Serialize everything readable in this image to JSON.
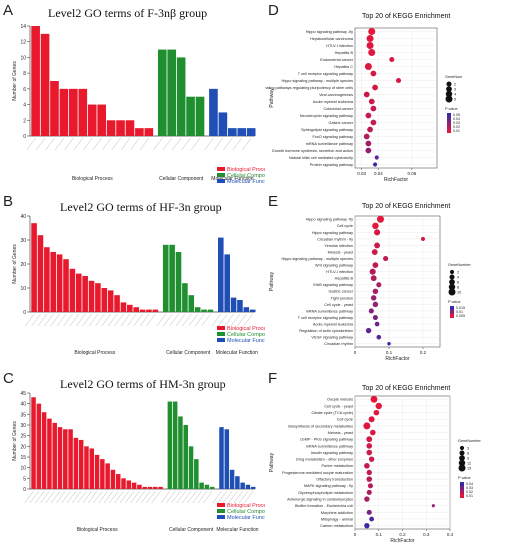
{
  "panels": {
    "A": "A",
    "B": "B",
    "C": "C",
    "D": "D",
    "E": "E",
    "F": "F"
  },
  "colors": {
    "bp": "#e8192c",
    "cc": "#1f8f2f",
    "mf": "#1f4fb4",
    "dot_high": "#e3163c",
    "dot_low": "#3a2aa8"
  },
  "chart_data": [
    {
      "id": "A",
      "type": "bar",
      "title": "Level2 GO terms of F-3nβ group",
      "ylabel": "Number of Genes",
      "ylim": [
        0,
        14
      ],
      "yticks": [
        0,
        2,
        4,
        6,
        8,
        10,
        12,
        14
      ],
      "groups": [
        "Biological Process",
        "Cellular Component",
        "Molecular Function"
      ],
      "legend": [
        "Biological Process",
        "Cellular Component",
        "Molecular Function"
      ],
      "series": [
        {
          "name": "Biological Process",
          "values": [
            14,
            13,
            7,
            6,
            6,
            6,
            4,
            4,
            2,
            2,
            2,
            1,
            1
          ]
        },
        {
          "name": "Cellular Component",
          "values": [
            11,
            11,
            10,
            5,
            5
          ]
        },
        {
          "name": "Molecular Function",
          "values": [
            6,
            3,
            1,
            1,
            1
          ]
        }
      ]
    },
    {
      "id": "B",
      "type": "bar",
      "title": "Level2 GO terms of HF-3n group",
      "ylabel": "Number of Genes",
      "ylim": [
        0,
        40
      ],
      "yticks": [
        0,
        10,
        20,
        30,
        40
      ],
      "groups": [
        "Biological Process",
        "Cellular Component",
        "Molecular Function"
      ],
      "legend": [
        "Biological Process",
        "Cellular Component",
        "Molecular Function"
      ],
      "series": [
        {
          "name": "Biological Process",
          "values": [
            37,
            32,
            27,
            25,
            24,
            22,
            18,
            16,
            15,
            13,
            12,
            10,
            9,
            7,
            4,
            3,
            2,
            1,
            1,
            1
          ]
        },
        {
          "name": "Cellular Component",
          "values": [
            28,
            28,
            25,
            12,
            7,
            2,
            1,
            1
          ]
        },
        {
          "name": "Molecular Function",
          "values": [
            31,
            24,
            6,
            5,
            2,
            1
          ]
        }
      ]
    },
    {
      "id": "C",
      "type": "bar",
      "title": "Level2 GO terms of HM-3n group",
      "ylabel": "Number of Genes",
      "ylim": [
        0,
        45
      ],
      "yticks": [
        0,
        5,
        10,
        15,
        20,
        25,
        30,
        35,
        40,
        45
      ],
      "groups": [
        "Biological Process",
        "Cellular Component",
        "Molecular Function"
      ],
      "legend": [
        "Biological Process",
        "Cellular Component",
        "Molecular Function"
      ],
      "series": [
        {
          "name": "Biological Process",
          "values": [
            43,
            40,
            36,
            33,
            31,
            29,
            28,
            28,
            24,
            23,
            20,
            19,
            16,
            14,
            12,
            9,
            7,
            5,
            4,
            3,
            2,
            1,
            1,
            1,
            1
          ]
        },
        {
          "name": "Cellular Component",
          "values": [
            41,
            41,
            34,
            30,
            20,
            14,
            3,
            2,
            1
          ]
        },
        {
          "name": "Molecular Function",
          "values": [
            29,
            28,
            9,
            6,
            3,
            2,
            1
          ]
        }
      ]
    },
    {
      "id": "D",
      "type": "scatter",
      "title": "Top 20 of KEGG Enrichment",
      "xlabel": "RichFactor",
      "ylabel": "Pathway",
      "xlim": [
        0.026,
        0.075
      ],
      "xticks": [
        0.03,
        0.04,
        0.06
      ],
      "size_legend_title": "GeneNum",
      "size_legend": [
        2,
        3,
        4,
        5
      ],
      "color_legend_title": "P value",
      "color_legend": [
        0.05,
        0.04,
        0.03,
        0.02,
        0.01
      ],
      "pathways": [
        "Hippo signaling pathway -fly",
        "Hepatocellular carcinoma",
        "HTLV-I infection",
        "Hepatitis B",
        "Endometrial cancer",
        "Hepatitis C",
        "T cell receptor signaling pathway",
        "Hippo signaling pathway - multiple species",
        "Signaling pathways regulating pluripotency of stem cells",
        "Viral carcinogenesis",
        "Acute myeloid leukemia",
        "Colorectal cancer",
        "Neurotrophin signaling pathway",
        "Gastric cancer",
        "Sphingolipid signaling pathway",
        "FoxO signaling pathway",
        "mRNA surveillance pathway",
        "Growth hormone synthesis, secretion and action",
        "Natural killer cell mediated cytotoxicity",
        "Protein signaling pathway"
      ],
      "x": [
        0.036,
        0.035,
        0.035,
        0.036,
        0.048,
        0.034,
        0.037,
        0.052,
        0.038,
        0.033,
        0.036,
        0.037,
        0.034,
        0.037,
        0.035,
        0.033,
        0.034,
        0.034,
        0.039,
        0.038
      ],
      "size": [
        5,
        5,
        5,
        5,
        2,
        5,
        3,
        2,
        3,
        3,
        3,
        3,
        3,
        3,
        3,
        3,
        3,
        3,
        1,
        1
      ],
      "pvalue": [
        0.001,
        0.001,
        0.002,
        0.002,
        0.004,
        0.003,
        0.005,
        0.005,
        0.006,
        0.007,
        0.008,
        0.009,
        0.009,
        0.01,
        0.012,
        0.015,
        0.02,
        0.025,
        0.04,
        0.05
      ]
    },
    {
      "id": "E",
      "type": "scatter",
      "title": "Top 20 of KEGG Enrichment",
      "xlabel": "RichFactor",
      "ylabel": "Pathway",
      "xlim": [
        0.0,
        0.25
      ],
      "xticks": [
        0.0,
        0.1,
        0.2
      ],
      "size_legend_title": "GeneNumber",
      "size_legend": [
        2,
        4,
        6,
        8,
        10
      ],
      "color_legend_title": "P value",
      "color_legend": [
        0.015,
        0.01,
        0.005
      ],
      "pathways": [
        "Hippo signaling pathway -fly",
        "Cell cycle",
        "Hippo signaling pathway",
        "Circadian rhythm - fly",
        "Yersinia infection",
        "Meiosis - yeast",
        "Hippo signaling pathway - multiple species",
        "Wnt signaling pathway",
        "HTLV-I infection",
        "Hepatitis B",
        "ErbB signaling pathway",
        "Gastric cancer",
        "Tight junction",
        "Cell cycle - yeast",
        "mRNA surveillance pathway",
        "T cell receptor signaling pathway",
        "Acute myeloid leukemia",
        "Regulation of actin cytoskeleton",
        "VEGF signaling pathway",
        "Circadian rhythm"
      ],
      "x": [
        0.075,
        0.06,
        0.065,
        0.2,
        0.065,
        0.058,
        0.09,
        0.06,
        0.052,
        0.055,
        0.07,
        0.06,
        0.055,
        0.06,
        0.048,
        0.06,
        0.065,
        0.04,
        0.07,
        0.1
      ],
      "size": [
        10,
        8,
        7,
        2,
        6,
        6,
        4,
        6,
        7,
        6,
        4,
        5,
        5,
        5,
        4,
        4,
        3,
        5,
        3,
        1
      ],
      "pvalue": [
        0.001,
        0.001,
        0.002,
        0.002,
        0.003,
        0.003,
        0.004,
        0.004,
        0.005,
        0.005,
        0.006,
        0.006,
        0.007,
        0.008,
        0.009,
        0.01,
        0.011,
        0.012,
        0.013,
        0.015
      ]
    },
    {
      "id": "F",
      "type": "scatter",
      "title": "Top 20 of KEGG Enrichment",
      "xlabel": "RichFactor",
      "ylabel": "Pathway",
      "xlim": [
        0.0,
        0.4
      ],
      "xticks": [
        0.0,
        0.1,
        0.2,
        0.3,
        0.4
      ],
      "size_legend_title": "GeneNumber",
      "size_legend": [
        3,
        6,
        9,
        12,
        15
      ],
      "color_legend_title": "P value",
      "color_legend": [
        0.04,
        0.03,
        0.02,
        0.01
      ],
      "pathways": [
        "Oocyte meiosis",
        "Cell cycle - yeast",
        "Citrate cycle (TCA cycle)",
        "Cell cycle",
        "Biosynthesis of secondary metabolites",
        "Meiosis - yeast",
        "cGMP - PKG signaling pathway",
        "mRNA surveillance pathway",
        "Insulin signaling pathway",
        "Drug metabolism - other enzymes",
        "Purine metabolism",
        "Progesterone-mediated oocyte maturation",
        "Olfactory transduction",
        "MAPK signaling pathway - fly",
        "Glycerophospholipid metabolism",
        "Adrenergic signaling in cardiomyocytes",
        "Biofilm formation - Escherichia coli",
        "Morphine addiction",
        "Mitophagy - animal",
        "Carbon metabolism"
      ],
      "x": [
        0.08,
        0.1,
        0.09,
        0.07,
        0.05,
        0.075,
        0.06,
        0.06,
        0.06,
        0.07,
        0.05,
        0.06,
        0.06,
        0.065,
        0.06,
        0.05,
        0.33,
        0.06,
        0.07,
        0.05
      ],
      "size": [
        14,
        12,
        8,
        10,
        15,
        8,
        9,
        8,
        8,
        7,
        8,
        7,
        8,
        6,
        6,
        7,
        1,
        6,
        5,
        7
      ],
      "pvalue": [
        0.001,
        0.001,
        0.001,
        0.002,
        0.002,
        0.003,
        0.004,
        0.005,
        0.006,
        0.007,
        0.008,
        0.009,
        0.01,
        0.011,
        0.013,
        0.015,
        0.02,
        0.025,
        0.035,
        0.04
      ]
    }
  ]
}
